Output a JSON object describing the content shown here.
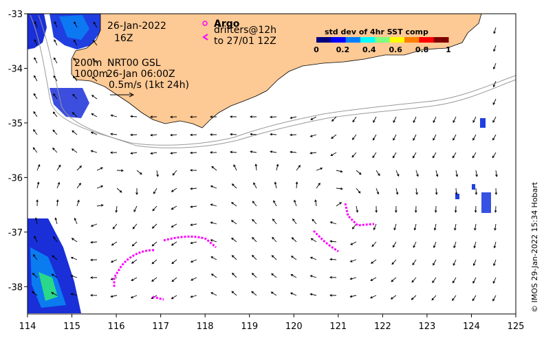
{
  "map": {
    "x_ticks": [
      "114",
      "115",
      "116",
      "117",
      "118",
      "119",
      "120",
      "121",
      "122",
      "123",
      "124",
      "125"
    ],
    "y_ticks": [
      "-33",
      "-34",
      "-35",
      "-36",
      "-37",
      "-38"
    ],
    "x_range": [
      114,
      125
    ],
    "y_range": [
      -38.5,
      -33
    ]
  },
  "annotations": {
    "date": "26-Jan-2022",
    "hour": "16Z",
    "legend_title": "Argo",
    "drifters_line1": "drifters@12h",
    "drifters_line2": "to 27/01 12Z",
    "depth_200": "200m",
    "depth_1000": "1000m",
    "nrt_label": "NRT00 GSL",
    "nrt_time": "26-Jan 06:00Z",
    "scale_label": "0.5m/s (1kt 24h)",
    "credit": "© IMOS 29-Jan-2022 15:34 Hobart"
  },
  "colorbar": {
    "title": "std dev of 4hr SST comp",
    "ticks": [
      "0",
      "0.2",
      "0.4",
      "0.6",
      "0.8",
      "1"
    ],
    "colors": [
      "#00007f",
      "#0000ff",
      "#007fff",
      "#00ffff",
      "#7fff7f",
      "#ffff00",
      "#ff7f00",
      "#ff0000",
      "#7f0000"
    ]
  },
  "colors": {
    "land": "#fdc994",
    "drifter": "#ff00ff",
    "isobath": "#999999"
  }
}
